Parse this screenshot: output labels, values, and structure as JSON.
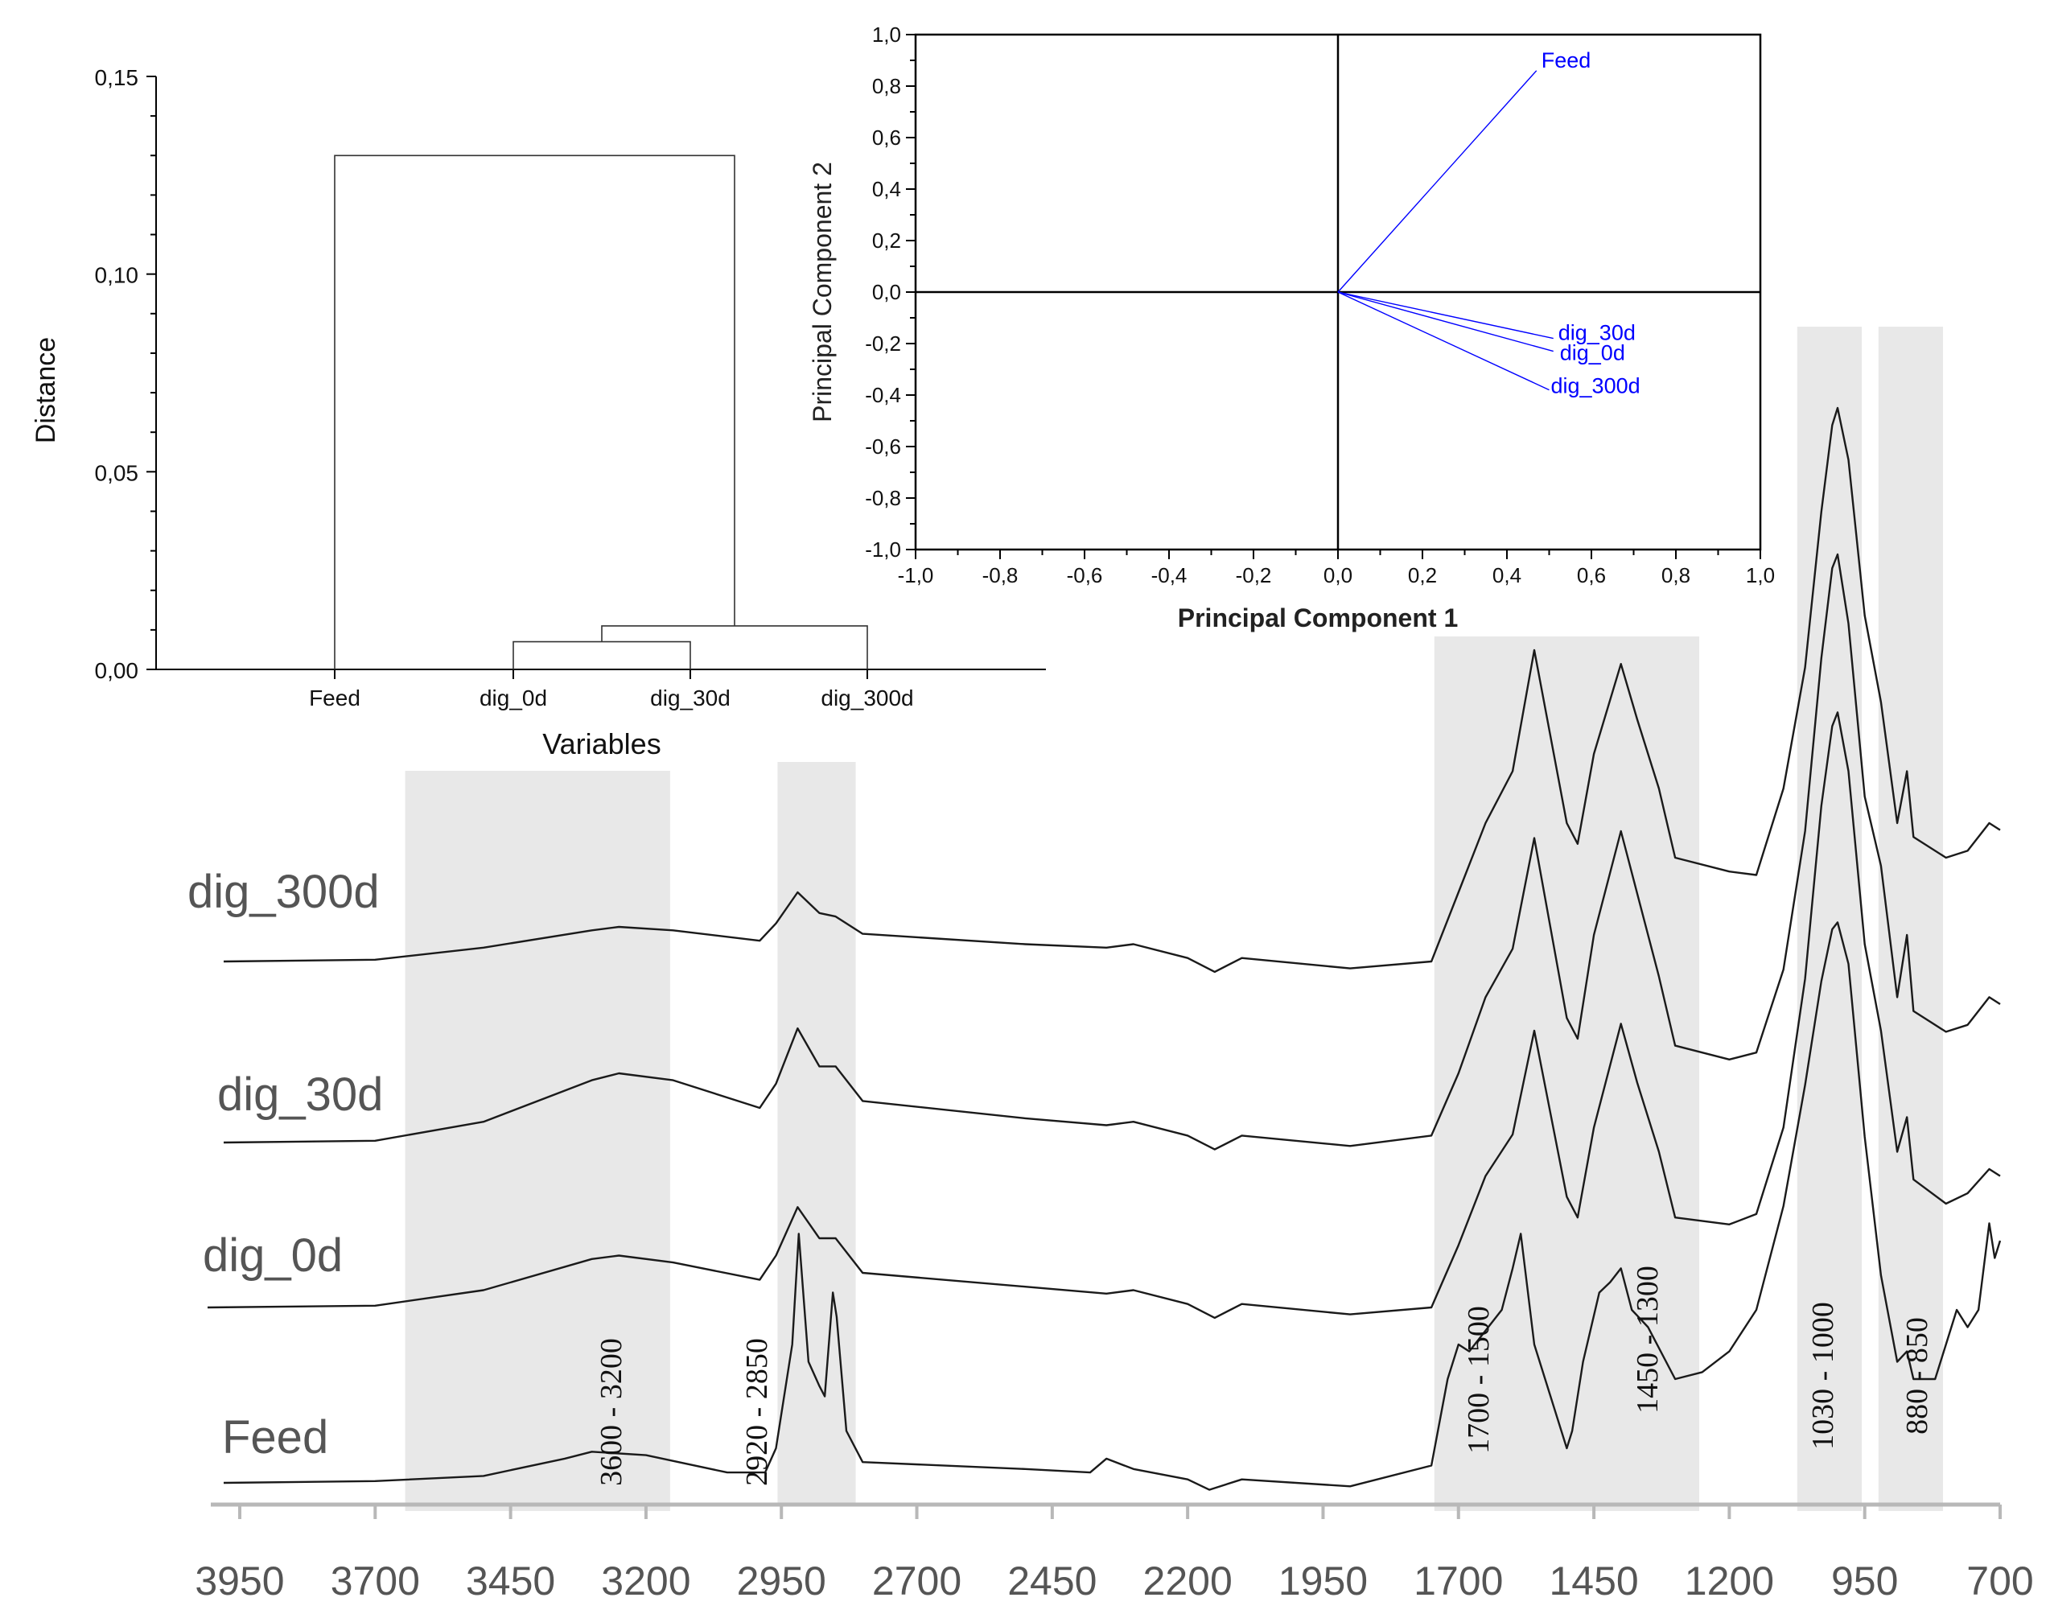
{
  "chart_data": [
    {
      "type": "dendrogram",
      "ylabel": "Distance",
      "xlabel": "Variables",
      "ylim": [
        0,
        0.15
      ],
      "yticks": [
        "0,00",
        "0,05",
        "0,10",
        "0,15"
      ],
      "leaves": [
        "Feed",
        "dig_0d",
        "dig_30d",
        "dig_300d"
      ],
      "merges": [
        {
          "left": "dig_0d",
          "right": "dig_30d",
          "height": 0.007
        },
        {
          "left": "dig_0d+dig_30d",
          "right": "dig_300d",
          "height": 0.011
        },
        {
          "left": "Feed",
          "right": "dig_0d+dig_30d+dig_300d",
          "height": 0.13
        }
      ]
    },
    {
      "type": "loading-plot",
      "xlabel": "Principal Component 1",
      "ylabel": "Principal Component 2",
      "xlim": [
        -1.0,
        1.0
      ],
      "ylim": [
        -1.0,
        1.0
      ],
      "xticks": [
        "-1,0",
        "-0,8",
        "-0,6",
        "-0,4",
        "-0,2",
        "0,0",
        "0,2",
        "0,4",
        "0,6",
        "0,8",
        "1,0"
      ],
      "yticks": [
        "1,0",
        "0,8",
        "0,6",
        "0,4",
        "0,2",
        "0,0",
        "-0,2",
        "-0,4",
        "-0,6",
        "-0,8",
        "-1,0"
      ],
      "vector_color": "#0000ff",
      "vectors": [
        {
          "name": "Feed",
          "x": 0.47,
          "y": 0.86
        },
        {
          "name": "dig_30d",
          "x": 0.51,
          "y": -0.18
        },
        {
          "name": "dig_0d",
          "x": 0.51,
          "y": -0.23
        },
        {
          "name": "dig_300d",
          "x": 0.5,
          "y": -0.38
        }
      ]
    },
    {
      "type": "line",
      "x_axis_ticks": [
        "3950",
        "3700",
        "3450",
        "3200",
        "2950",
        "2700",
        "2450",
        "2200",
        "1950",
        "1700",
        "1450",
        "1200",
        "950",
        "700"
      ],
      "xlim": [
        4000,
        700
      ],
      "bands": [
        {
          "label": "3600 - 3200",
          "from": 3600,
          "to": 3200
        },
        {
          "label": "2920 - 2850",
          "from": 2920,
          "to": 2850
        },
        {
          "label": "1700 - 1500",
          "from": 1700,
          "to": 1500
        },
        {
          "label": "1450 - 1300",
          "from": 1450,
          "to": 1300
        },
        {
          "label": "1030 - 1000",
          "from": 1030,
          "to": 1000
        },
        {
          "label": "880 - 850",
          "from": 880,
          "to": 850
        }
      ],
      "band_color": "#e8e8e8",
      "series": [
        {
          "name": "dig_300d",
          "x": [
            3950,
            3700,
            3500,
            3300,
            3250,
            3150,
            2990,
            2960,
            2920,
            2880,
            2850,
            2800,
            2500,
            2350,
            2300,
            2200,
            2150,
            2100,
            1900,
            1750,
            1700,
            1650,
            1600,
            1560,
            1500,
            1480,
            1450,
            1400,
            1370,
            1330,
            1300,
            1200,
            1150,
            1100,
            1060,
            1030,
            1010,
            1000,
            980,
            950,
            920,
            890,
            872,
            860,
            800,
            760,
            720,
            700
          ],
          "y": [
            0.0,
            0.005,
            0.04,
            0.09,
            0.1,
            0.09,
            0.06,
            0.11,
            0.2,
            0.14,
            0.13,
            0.08,
            0.05,
            0.04,
            0.05,
            0.01,
            -0.03,
            0.01,
            -0.02,
            0.0,
            0.2,
            0.4,
            0.55,
            0.9,
            0.4,
            0.34,
            0.6,
            0.86,
            0.7,
            0.5,
            0.3,
            0.26,
            0.25,
            0.5,
            0.85,
            1.3,
            1.55,
            1.6,
            1.45,
            1.0,
            0.75,
            0.4,
            0.55,
            0.36,
            0.3,
            0.32,
            0.4,
            0.38
          ]
        },
        {
          "name": "dig_30d",
          "x": [
            3950,
            3700,
            3500,
            3300,
            3250,
            3150,
            2990,
            2960,
            2920,
            2880,
            2850,
            2800,
            2500,
            2350,
            2300,
            2200,
            2150,
            2100,
            1900,
            1750,
            1700,
            1650,
            1600,
            1560,
            1500,
            1480,
            1450,
            1400,
            1370,
            1330,
            1300,
            1200,
            1150,
            1100,
            1060,
            1030,
            1010,
            1000,
            980,
            950,
            920,
            890,
            872,
            860,
            800,
            760,
            720,
            700
          ],
          "y": [
            0.0,
            0.005,
            0.06,
            0.18,
            0.2,
            0.18,
            0.1,
            0.17,
            0.33,
            0.22,
            0.22,
            0.12,
            0.07,
            0.05,
            0.06,
            0.02,
            -0.02,
            0.02,
            -0.01,
            0.02,
            0.2,
            0.42,
            0.56,
            0.88,
            0.36,
            0.3,
            0.6,
            0.9,
            0.72,
            0.48,
            0.28,
            0.24,
            0.26,
            0.5,
            0.9,
            1.4,
            1.66,
            1.7,
            1.5,
            1.0,
            0.8,
            0.42,
            0.6,
            0.38,
            0.32,
            0.34,
            0.42,
            0.4
          ]
        },
        {
          "name": "dig_0d",
          "x": [
            3950,
            3700,
            3500,
            3300,
            3250,
            3150,
            2990,
            2960,
            2920,
            2880,
            2850,
            2800,
            2500,
            2350,
            2300,
            2200,
            2150,
            2100,
            1900,
            1750,
            1700,
            1650,
            1600,
            1560,
            1500,
            1480,
            1450,
            1400,
            1370,
            1330,
            1300,
            1200,
            1150,
            1100,
            1060,
            1030,
            1010,
            1000,
            980,
            950,
            920,
            890,
            872,
            860,
            800,
            760,
            720,
            700
          ],
          "y": [
            0.0,
            0.005,
            0.05,
            0.14,
            0.15,
            0.13,
            0.08,
            0.15,
            0.29,
            0.2,
            0.2,
            0.1,
            0.06,
            0.04,
            0.05,
            0.01,
            -0.03,
            0.01,
            -0.02,
            0.0,
            0.18,
            0.38,
            0.5,
            0.8,
            0.32,
            0.26,
            0.52,
            0.82,
            0.65,
            0.45,
            0.26,
            0.24,
            0.27,
            0.52,
            0.95,
            1.45,
            1.68,
            1.72,
            1.55,
            1.05,
            0.8,
            0.45,
            0.55,
            0.37,
            0.3,
            0.33,
            0.4,
            0.38
          ]
        },
        {
          "name": "Feed",
          "x": [
            3950,
            3700,
            3500,
            3350,
            3300,
            3200,
            3050,
            2980,
            2960,
            2930,
            2918,
            2900,
            2880,
            2870,
            2855,
            2848,
            2830,
            2800,
            2500,
            2380,
            2350,
            2300,
            2200,
            2160,
            2100,
            1900,
            1750,
            1720,
            1700,
            1680,
            1620,
            1600,
            1585,
            1560,
            1500,
            1490,
            1470,
            1440,
            1420,
            1400,
            1380,
            1350,
            1300,
            1250,
            1200,
            1150,
            1100,
            1060,
            1030,
            1010,
            1000,
            980,
            950,
            920,
            890,
            872,
            860,
            820,
            800,
            780,
            760,
            740,
            720,
            710,
            700
          ],
          "y": [
            0.0,
            0.005,
            0.02,
            0.07,
            0.09,
            0.08,
            0.03,
            0.03,
            0.1,
            0.4,
            0.72,
            0.35,
            0.28,
            0.25,
            0.55,
            0.48,
            0.15,
            0.06,
            0.04,
            0.03,
            0.07,
            0.04,
            0.01,
            -0.02,
            0.01,
            -0.01,
            0.05,
            0.3,
            0.4,
            0.38,
            0.5,
            0.62,
            0.72,
            0.4,
            0.1,
            0.15,
            0.35,
            0.55,
            0.58,
            0.62,
            0.5,
            0.45,
            0.3,
            0.32,
            0.38,
            0.5,
            0.8,
            1.15,
            1.45,
            1.6,
            1.62,
            1.5,
            1.0,
            0.6,
            0.35,
            0.38,
            0.3,
            0.3,
            0.4,
            0.5,
            0.45,
            0.5,
            0.75,
            0.65,
            0.7
          ]
        }
      ]
    }
  ]
}
